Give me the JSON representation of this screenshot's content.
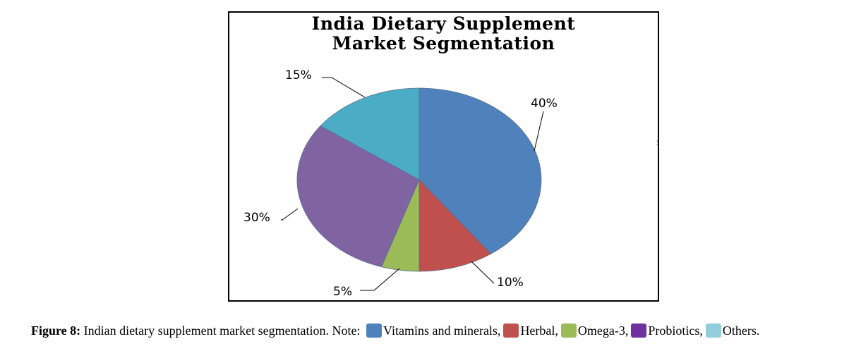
{
  "chart_data": {
    "type": "pie",
    "title": [
      "India Dietary Supplement",
      "Market Segmentation"
    ],
    "slices": [
      {
        "label": "Vitamins and minerals",
        "value": 40,
        "display": "40%",
        "color": "#4F81BD"
      },
      {
        "label": "Herbal",
        "value": 10,
        "display": "10%",
        "color": "#C0504D"
      },
      {
        "label": "Omega-3",
        "value": 5,
        "display": "5%",
        "color": "#9BBB59"
      },
      {
        "label": "Probiotics",
        "value": 30,
        "display": "30%",
        "color": "#8064A2"
      },
      {
        "label": "Others",
        "value": 15,
        "display": "15%",
        "color": "#4BACC6"
      }
    ]
  },
  "caption": {
    "figure_label": "Figure 8:",
    "text": " Indian dietary supplement market segmentation. Note: ",
    "legend": [
      {
        "text": "Vitamins and minerals,",
        "color": "#4F81BD"
      },
      {
        "text": "Herbal,",
        "color": "#C0504D"
      },
      {
        "text": "Omega-3,",
        "color": "#9BBB59"
      },
      {
        "text": "Probiotics,",
        "color": "#7030A0"
      },
      {
        "text": "Others.",
        "color": "#92CDDC"
      }
    ]
  }
}
